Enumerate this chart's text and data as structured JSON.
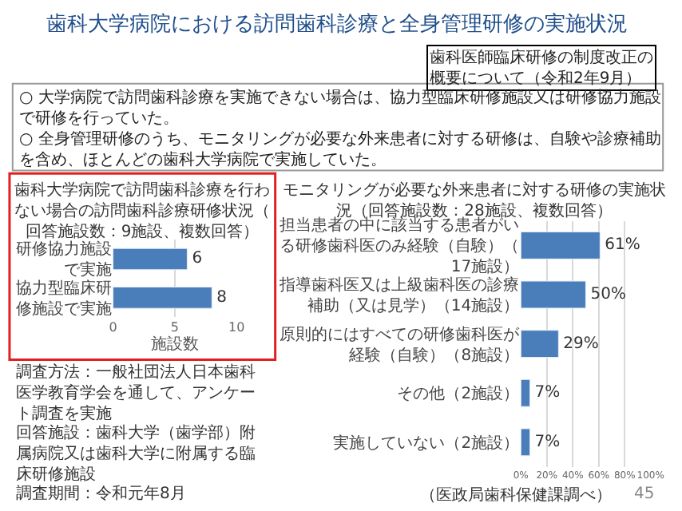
{
  "chart_data": [
    {
      "type": "bar",
      "orientation": "horizontal",
      "title": "歯科大学病院で訪問歯科診療を行わない場合の訪問歯科診療研修状況（回答施設数：9施設、複数回答）",
      "categories": [
        "研修協力施設で実施",
        "協力型臨床研修施設で実施"
      ],
      "values": [
        6,
        8
      ],
      "color": "#4a7ebb",
      "data_labels": true,
      "xlim": [
        0,
        10
      ],
      "xticks": [
        0,
        5,
        10
      ],
      "xlabel": "施設数",
      "grid": "x",
      "legend": false,
      "annotations": [
        "歯科大学病院における訪問歯科診療と全身管理研修の実施状況",
        "歯科医師臨床研修の制度改正の概要について（令和2年9月）",
        "○ 大学病院で訪問歯科診療を実施できない場合は、協力型臨床研修施設又は研修協力施設で研修を行っていた。",
        "○ 全身管理研修のうち、モニタリングが必要な外来患者に対する研修は、自験や診療補助を含め、ほとんどの歯科大学病院で実施していた。",
        "調査方法：一般社団法人日本歯科医学教育学会を通して、アンケート調査を実施",
        "回答施設：歯科大学（歯学部）附属病院又は歯科大学に附属する臨床研修施設",
        "調査期間：令和元年8月"
      ]
    },
    {
      "type": "bar",
      "orientation": "horizontal",
      "title": "モニタリングが必要な外来患者に対する研修の実施状況（回答施設数：28施設、複数回答）",
      "categories": [
        "担当患者の中に該当する患者がいる研修歯科医のみ経験（自験）（17施設）",
        "指導歯科医又は上級歯科医の診療補助（又は見学）（14施設）",
        "原則的にはすべての研修歯科医が経験（自験）（8施設）",
        "その他（2施設）",
        "実施していない（2施設）"
      ],
      "values": [
        61,
        50,
        29,
        7,
        7
      ],
      "color": "#4a7ebb",
      "value_labels": [
        "61%",
        "50%",
        "29%",
        "7%",
        "7%"
      ],
      "xlim": [
        0,
        100
      ],
      "xticks": [
        {
          "value": 0,
          "label": "0%"
        },
        {
          "value": 20,
          "label": "20%"
        },
        {
          "value": 40,
          "label": "40%"
        },
        {
          "value": 60,
          "label": "60%"
        },
        {
          "value": 80,
          "label": "80%"
        },
        {
          "value": 100,
          "label": "100%"
        }
      ],
      "grid": "x",
      "legend": false,
      "annotations": [
        "（医政局歯科保健課調べ）",
        "45"
      ]
    }
  ]
}
